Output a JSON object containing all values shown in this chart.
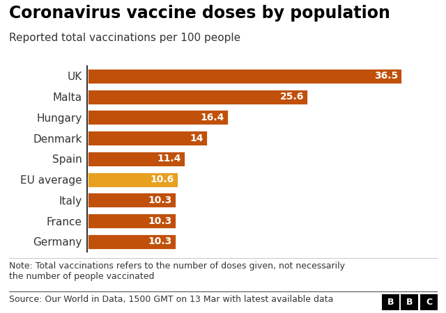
{
  "title": "Coronavirus vaccine doses by population",
  "subtitle": "Reported total vaccinations per 100 people",
  "categories": [
    "UK",
    "Malta",
    "Hungary",
    "Denmark",
    "Spain",
    "EU average",
    "Italy",
    "France",
    "Germany"
  ],
  "values": [
    36.5,
    25.6,
    16.4,
    14.0,
    11.4,
    10.6,
    10.3,
    10.3,
    10.3
  ],
  "value_labels": [
    "36.5",
    "25.6",
    "16.4",
    "14",
    "11.4",
    "10.6",
    "10.3",
    "10.3",
    "10.3"
  ],
  "bar_colors": [
    "#c0500a",
    "#c0500a",
    "#c0500a",
    "#c0500a",
    "#c0500a",
    "#e8a020",
    "#c0500a",
    "#c0500a",
    "#c0500a"
  ],
  "label_color": "#ffffff",
  "bg_color": "#ffffff",
  "note_text": "Note: Total vaccinations refers to the number of doses given, not necessarily\nthe number of people vaccinated",
  "source_text": "Source: Our World in Data, 1500 GMT on 13 Mar with latest available data",
  "title_fontsize": 17,
  "subtitle_fontsize": 11,
  "label_fontsize": 10,
  "category_fontsize": 11,
  "note_fontsize": 9,
  "source_fontsize": 9,
  "xlim": [
    0,
    40
  ],
  "bar_height": 0.78
}
